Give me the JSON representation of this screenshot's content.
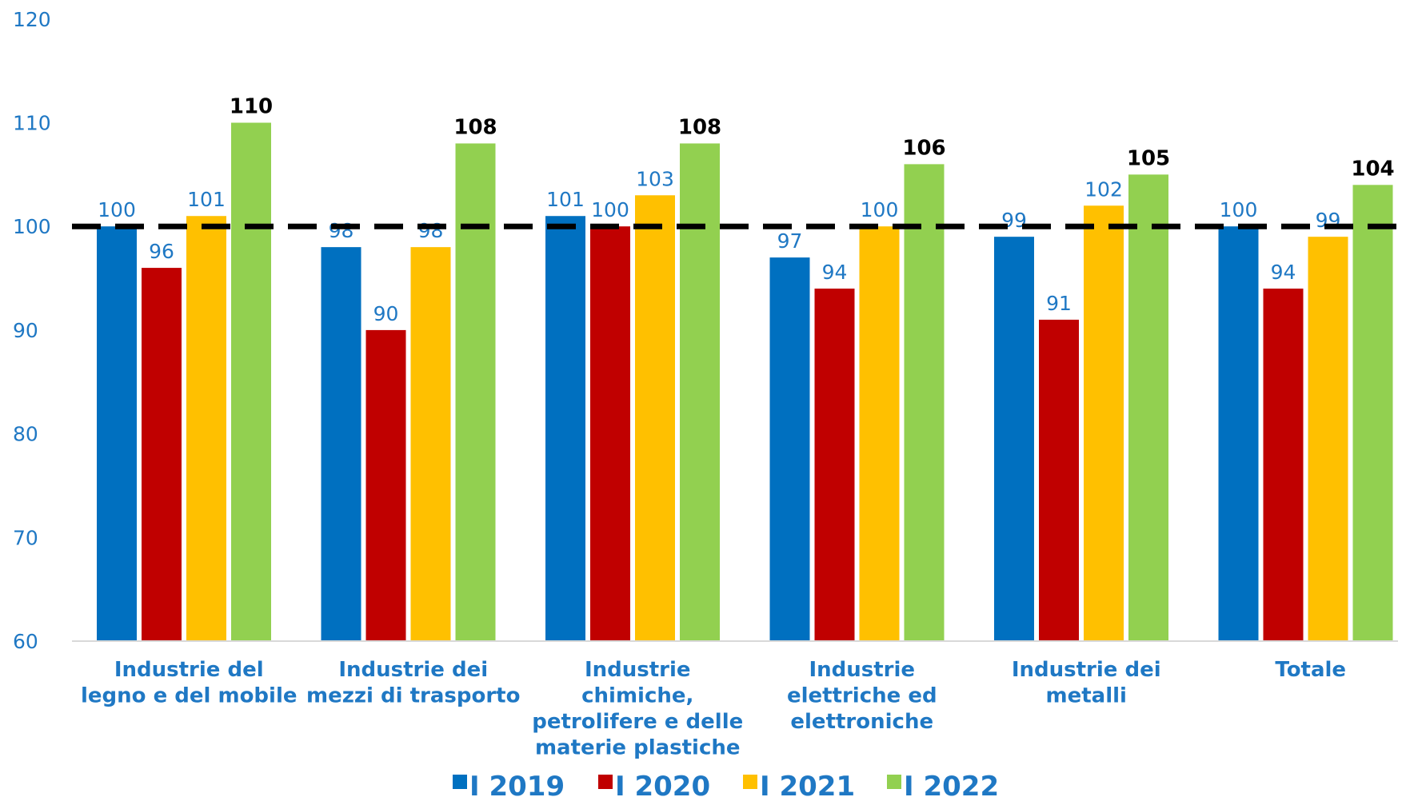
{
  "chart_data": {
    "type": "bar",
    "categories": [
      [
        "Industrie del",
        "legno e del mobile"
      ],
      [
        "Industrie dei",
        "mezzi di trasporto"
      ],
      [
        "Industrie",
        "chimiche,",
        "petrolifere e delle",
        "materie plastiche"
      ],
      [
        "Industrie",
        "elettriche ed",
        "elettroniche"
      ],
      [
        "Industrie dei",
        "metalli"
      ],
      [
        "Totale"
      ]
    ],
    "series": [
      {
        "name": "I 2019",
        "color": "#0070C0",
        "values": [
          100,
          98,
          101,
          97,
          99,
          100
        ],
        "labels": [
          "100",
          "98",
          "101",
          "97",
          "99",
          "100"
        ],
        "bold_labels": false
      },
      {
        "name": "I 2020",
        "color": "#C00000",
        "values": [
          96,
          90,
          100,
          94,
          91,
          94
        ],
        "labels": [
          "96",
          "90",
          "100",
          "94",
          "91",
          "94"
        ],
        "bold_labels": false
      },
      {
        "name": "I 2021",
        "color": "#FFC000",
        "values": [
          101,
          98,
          103,
          100,
          102,
          99
        ],
        "labels": [
          "101",
          "98",
          "103",
          "100",
          "102",
          "99"
        ],
        "bold_labels": false
      },
      {
        "name": "I 2022",
        "color": "#92D050",
        "values": [
          110,
          108,
          108,
          106,
          105,
          104
        ],
        "labels": [
          "110",
          "108",
          "108",
          "106",
          "105",
          "104"
        ],
        "bold_labels": true
      }
    ],
    "ylim": [
      60,
      120
    ],
    "yticks": [
      "60",
      "70",
      "80",
      "90",
      "100",
      "110",
      "120"
    ],
    "reference_line": {
      "value": 100,
      "style": "dashed",
      "color": "#000000"
    },
    "legend_position": "bottom",
    "grid": false
  }
}
